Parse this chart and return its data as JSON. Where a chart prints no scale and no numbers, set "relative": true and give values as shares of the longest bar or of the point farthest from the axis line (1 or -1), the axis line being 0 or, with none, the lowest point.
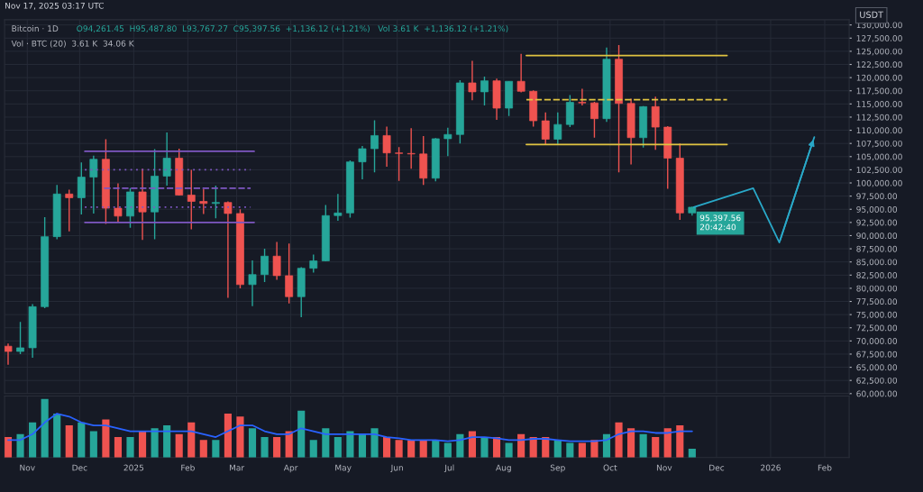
{
  "chart_data": [
    {
      "type": "candlestick",
      "title": "Bitcoin · 1D",
      "ylabel": "USDT",
      "annotations": [
        "Nov 17, 2025 03:17 UTC",
        "O94,261.45  H95,487.80  L93,767.27  C95,397.56  +1,136.12 (+1.21%)   Vol 3.61 K  +1,136.12 (+1.21%)",
        "Vol · BTC (20)  3.61 K  34.06 K",
        {
          "text": "95,397.56\n20:42:40",
          "x": "2025-11-17",
          "y": 95397.56
        }
      ],
      "x": [
        "2024-10-21",
        "2024-10-28",
        "2024-11-04",
        "2024-11-11",
        "2024-11-18",
        "2024-11-25",
        "2024-12-02",
        "2024-12-09",
        "2024-12-16",
        "2024-12-23",
        "2024-12-30",
        "2025-01-06",
        "2025-01-13",
        "2025-01-20",
        "2025-01-27",
        "2025-02-03",
        "2025-02-10",
        "2025-02-17",
        "2025-02-24",
        "2025-03-03",
        "2025-03-10",
        "2025-03-17",
        "2025-03-24",
        "2025-03-31",
        "2025-04-07",
        "2025-04-14",
        "2025-04-21",
        "2025-04-28",
        "2025-05-05",
        "2025-05-12",
        "2025-05-19",
        "2025-05-26",
        "2025-06-02",
        "2025-06-09",
        "2025-06-16",
        "2025-06-23",
        "2025-06-30",
        "2025-07-07",
        "2025-07-14",
        "2025-07-21",
        "2025-07-28",
        "2025-08-04",
        "2025-08-11",
        "2025-08-18",
        "2025-08-25",
        "2025-09-01",
        "2025-09-08",
        "2025-09-15",
        "2025-09-22",
        "2025-09-29",
        "2025-10-06",
        "2025-10-13",
        "2025-10-20",
        "2025-10-27",
        "2025-11-03",
        "2025-11-10",
        "2025-11-17"
      ],
      "ohlc": [
        [
          69000,
          69500,
          65500,
          68000
        ],
        [
          68000,
          73600,
          67500,
          68700
        ],
        [
          68700,
          77000,
          66800,
          76500
        ],
        [
          76500,
          93500,
          76200,
          89800
        ],
        [
          89800,
          99600,
          89300,
          97900
        ],
        [
          97900,
          98700,
          90800,
          97200
        ],
        [
          97200,
          103900,
          94000,
          101100
        ],
        [
          101100,
          105200,
          94200,
          104500
        ],
        [
          104500,
          108300,
          92200,
          95200
        ],
        [
          95200,
          99900,
          92500,
          93700
        ],
        [
          93700,
          99000,
          91500,
          98300
        ],
        [
          98300,
          102700,
          89200,
          94500
        ],
        [
          94500,
          106400,
          89300,
          101300
        ],
        [
          101300,
          109600,
          99500,
          104700
        ],
        [
          104700,
          106500,
          97600,
          97700
        ],
        [
          97700,
          102500,
          91200,
          96500
        ],
        [
          96500,
          98800,
          94100,
          96100
        ],
        [
          96100,
          99500,
          93300,
          96300
        ],
        [
          96300,
          96500,
          78200,
          94200
        ],
        [
          94200,
          95000,
          80000,
          80700
        ],
        [
          80700,
          85300,
          76600,
          82600
        ],
        [
          82600,
          87500,
          81200,
          86100
        ],
        [
          86100,
          88800,
          81600,
          82400
        ],
        [
          82400,
          88500,
          77100,
          78400
        ],
        [
          78400,
          84000,
          74500,
          83800
        ],
        [
          83800,
          86400,
          83000,
          85200
        ],
        [
          85200,
          95800,
          85100,
          93800
        ],
        [
          93800,
          97900,
          92800,
          94300
        ],
        [
          94300,
          104300,
          93400,
          104000
        ],
        [
          104000,
          107000,
          100700,
          106500
        ],
        [
          106500,
          111900,
          102000,
          109000
        ],
        [
          109000,
          110700,
          103100,
          105700
        ],
        [
          105700,
          106800,
          100400,
          105600
        ],
        [
          105600,
          110400,
          102700,
          105500
        ],
        [
          105500,
          108900,
          99600,
          100900
        ],
        [
          100900,
          108500,
          100300,
          108400
        ],
        [
          108400,
          110500,
          105100,
          109200
        ],
        [
          109200,
          119500,
          107500,
          119000
        ],
        [
          119000,
          123200,
          115700,
          117300
        ],
        [
          117300,
          120200,
          114700,
          119400
        ],
        [
          119400,
          119800,
          112000,
          114200
        ],
        [
          114200,
          119300,
          112700,
          119300
        ],
        [
          119300,
          124500,
          117200,
          117400
        ],
        [
          117400,
          117600,
          110700,
          111800
        ],
        [
          111800,
          113400,
          107300,
          108300
        ],
        [
          108300,
          113400,
          107300,
          111100
        ],
        [
          111100,
          116700,
          110600,
          115300
        ],
        [
          115300,
          117900,
          114700,
          115200
        ],
        [
          115200,
          115400,
          108600,
          112200
        ],
        [
          112200,
          125700,
          111600,
          123500
        ],
        [
          123500,
          126200,
          102000,
          115100
        ],
        [
          115100,
          116000,
          103500,
          108600
        ],
        [
          108600,
          114600,
          106700,
          114500
        ],
        [
          114500,
          116400,
          106300,
          110600
        ],
        [
          110600,
          110800,
          98900,
          104700
        ],
        [
          104700,
          107500,
          93000,
          94300
        ],
        [
          94300,
          95500,
          93800,
          95400
        ]
      ],
      "colors": [
        "#ef5350",
        "#26a69a",
        "#26a69a",
        "#26a69a",
        "#26a69a",
        "#ef5350",
        "#26a69a",
        "#26a69a",
        "#ef5350",
        "#ef5350",
        "#26a69a",
        "#ef5350",
        "#26a69a",
        "#26a69a",
        "#ef5350",
        "#ef5350",
        "#ef5350",
        "#26a69a",
        "#ef5350",
        "#ef5350",
        "#26a69a",
        "#26a69a",
        "#ef5350",
        "#ef5350",
        "#26a69a",
        "#26a69a",
        "#26a69a",
        "#26a69a",
        "#26a69a",
        "#26a69a",
        "#26a69a",
        "#ef5350",
        "#ef5350",
        "#ef5350",
        "#ef5350",
        "#26a69a",
        "#26a69a",
        "#26a69a",
        "#ef5350",
        "#26a69a",
        "#ef5350",
        "#26a69a",
        "#ef5350",
        "#ef5350",
        "#ef5350",
        "#26a69a",
        "#26a69a",
        "#ef5350",
        "#ef5350",
        "#26a69a",
        "#ef5350",
        "#ef5350",
        "#26a69a",
        "#ef5350",
        "#ef5350",
        "#ef5350",
        "#26a69a"
      ],
      "series": [
        {
          "type": "line",
          "color": "#7e57c2",
          "line_style": "solid",
          "x": [
            "2024-12-04",
            "2025-03-11"
          ],
          "values": [
            106000,
            106000
          ]
        },
        {
          "type": "line",
          "color": "#7e57c2",
          "line_style": "dotted",
          "x": [
            "2024-12-04",
            "2025-03-09"
          ],
          "values": [
            102500,
            102500
          ]
        },
        {
          "type": "line",
          "color": "#7e57c2",
          "line_style": "dashed",
          "x": [
            "2024-12-15",
            "2025-03-09"
          ],
          "values": [
            99000,
            99000
          ]
        },
        {
          "type": "line",
          "color": "#7e57c2",
          "line_style": "dotted",
          "x": [
            "2024-12-04",
            "2025-03-09"
          ],
          "values": [
            95400,
            95400
          ]
        },
        {
          "type": "line",
          "color": "#7e57c2",
          "line_style": "solid",
          "x": [
            "2024-12-04",
            "2025-03-11"
          ],
          "values": [
            92500,
            92500
          ]
        },
        {
          "type": "line",
          "color": "#e0c341",
          "line_style": "solid",
          "x": [
            "2025-08-14",
            "2025-12-07"
          ],
          "values": [
            124200,
            124200
          ]
        },
        {
          "type": "line",
          "color": "#e0c341",
          "line_style": "dashed",
          "x": [
            "2025-08-14",
            "2025-12-07"
          ],
          "values": [
            115800,
            115800
          ]
        },
        {
          "type": "line",
          "color": "#e0c341",
          "line_style": "solid",
          "x": [
            "2025-08-14",
            "2025-12-07"
          ],
          "values": [
            107300,
            107300
          ]
        },
        {
          "type": "line",
          "color": "#29a8c8",
          "line_style": "solid",
          "x": [
            "2025-11-18",
            "2025-12-22",
            "2026-01-06",
            "2026-01-26"
          ],
          "values": [
            95400,
            99000,
            88700,
            108700
          ]
        }
      ],
      "xlim": [
        "2024-10-19",
        "2026-02-15"
      ],
      "xticks": [
        {
          "value": "2024-11-01",
          "label": null
        },
        {
          "value": "2024-12-01",
          "label": null
        },
        {
          "value": "2025-01-01",
          "label": null
        },
        {
          "value": "2025-02-01",
          "label": null
        },
        {
          "value": "2025-03-01",
          "label": null
        },
        {
          "value": "2025-04-01",
          "label": null
        },
        {
          "value": "2025-05-01",
          "label": null
        },
        {
          "value": "2025-06-01",
          "label": null
        },
        {
          "value": "2025-07-01",
          "label": null
        },
        {
          "value": "2025-08-01",
          "label": null
        },
        {
          "value": "2025-09-01",
          "label": null
        },
        {
          "value": "2025-10-01",
          "label": null
        },
        {
          "value": "2025-11-01",
          "label": null
        },
        {
          "value": "2025-12-01",
          "label": null
        },
        {
          "value": "2026-01-01",
          "label": null
        },
        {
          "value": "2026-02-01",
          "label": null
        }
      ],
      "ylim": [
        60000,
        131000
      ],
      "yticks": [
        {
          "value": 60000,
          "label": "60,000.00"
        },
        {
          "value": 62500,
          "label": "62,500.00"
        },
        {
          "value": 65000,
          "label": "65,000.00"
        },
        {
          "value": 67500,
          "label": "67,500.00"
        },
        {
          "value": 70000,
          "label": "70,000.00"
        },
        {
          "value": 72500,
          "label": "72,500.00"
        },
        {
          "value": 75000,
          "label": "75,000.00"
        },
        {
          "value": 77500,
          "label": "77,500.00"
        },
        {
          "value": 80000,
          "label": "80,000.00"
        },
        {
          "value": 82500,
          "label": "82,500.00"
        },
        {
          "value": 85000,
          "label": "85,000.00"
        },
        {
          "value": 87500,
          "label": "87,500.00"
        },
        {
          "value": 90000,
          "label": "90,000.00"
        },
        {
          "value": 92500,
          "label": "92,500.00"
        },
        {
          "value": 95000,
          "label": "95,000.00"
        },
        {
          "value": 97500,
          "label": "97,500.00"
        },
        {
          "value": 100000,
          "label": "100,000.00"
        },
        {
          "value": 102500,
          "label": "102,500.00"
        },
        {
          "value": 105000,
          "label": "105,000.00"
        },
        {
          "value": 107500,
          "label": "107,500.00"
        },
        {
          "value": 110000,
          "label": "110,000.00"
        },
        {
          "value": 112500,
          "label": "112,500.00"
        },
        {
          "value": 115000,
          "label": "115,000.00"
        },
        {
          "value": 117500,
          "label": "117,500.00"
        },
        {
          "value": 120000,
          "label": "120,000.00"
        },
        {
          "value": 122500,
          "label": "122,500.00"
        },
        {
          "value": 125000,
          "label": "125,000.00"
        },
        {
          "value": 127500,
          "label": "127,500.00"
        },
        {
          "value": 130000,
          "label": "130,000.00"
        }
      ],
      "tick_labels": "y",
      "grid": true
    },
    {
      "type": "bar",
      "relative": true,
      "x": [
        "2024-10-21",
        "2024-10-28",
        "2024-11-04",
        "2024-11-11",
        "2024-11-18",
        "2024-11-25",
        "2024-12-02",
        "2024-12-09",
        "2024-12-16",
        "2024-12-23",
        "2024-12-30",
        "2025-01-06",
        "2025-01-13",
        "2025-01-20",
        "2025-01-27",
        "2025-02-03",
        "2025-02-10",
        "2025-02-17",
        "2025-02-24",
        "2025-03-03",
        "2025-03-10",
        "2025-03-17",
        "2025-03-24",
        "2025-03-31",
        "2025-04-07",
        "2025-04-14",
        "2025-04-21",
        "2025-04-28",
        "2025-05-05",
        "2025-05-12",
        "2025-05-19",
        "2025-05-26",
        "2025-06-02",
        "2025-06-09",
        "2025-06-16",
        "2025-06-23",
        "2025-06-30",
        "2025-07-07",
        "2025-07-14",
        "2025-07-21",
        "2025-07-28",
        "2025-08-04",
        "2025-08-11",
        "2025-08-18",
        "2025-08-25",
        "2025-09-01",
        "2025-09-08",
        "2025-09-15",
        "2025-09-22",
        "2025-09-29",
        "2025-10-06",
        "2025-10-13",
        "2025-10-20",
        "2025-10-27",
        "2025-11-03",
        "2025-11-10",
        "2025-11-17"
      ],
      "series": [
        {
          "type": "bar",
          "colors": [
            "#ef5350",
            "#26a69a",
            "#26a69a",
            "#26a69a",
            "#26a69a",
            "#ef5350",
            "#26a69a",
            "#26a69a",
            "#ef5350",
            "#ef5350",
            "#26a69a",
            "#ef5350",
            "#26a69a",
            "#26a69a",
            "#ef5350",
            "#ef5350",
            "#ef5350",
            "#26a69a",
            "#ef5350",
            "#ef5350",
            "#26a69a",
            "#26a69a",
            "#ef5350",
            "#ef5350",
            "#26a69a",
            "#26a69a",
            "#26a69a",
            "#26a69a",
            "#26a69a",
            "#26a69a",
            "#26a69a",
            "#ef5350",
            "#ef5350",
            "#ef5350",
            "#ef5350",
            "#26a69a",
            "#26a69a",
            "#26a69a",
            "#ef5350",
            "#26a69a",
            "#ef5350",
            "#26a69a",
            "#ef5350",
            "#ef5350",
            "#ef5350",
            "#26a69a",
            "#26a69a",
            "#ef5350",
            "#ef5350",
            "#26a69a",
            "#ef5350",
            "#ef5350",
            "#26a69a",
            "#ef5350",
            "#ef5350",
            "#ef5350",
            "#26a69a"
          ],
          "values": [
            0.35,
            0.4,
            0.6,
            1.0,
            0.75,
            0.55,
            0.6,
            0.45,
            0.65,
            0.35,
            0.35,
            0.45,
            0.5,
            0.55,
            0.4,
            0.6,
            0.3,
            0.3,
            0.75,
            0.7,
            0.5,
            0.35,
            0.35,
            0.45,
            0.8,
            0.3,
            0.5,
            0.35,
            0.45,
            0.4,
            0.5,
            0.35,
            0.3,
            0.3,
            0.3,
            0.3,
            0.25,
            0.4,
            0.45,
            0.35,
            0.35,
            0.25,
            0.4,
            0.35,
            0.35,
            0.3,
            0.25,
            0.25,
            0.3,
            0.4,
            0.6,
            0.5,
            0.4,
            0.35,
            0.5,
            0.55,
            0.15
          ]
        },
        {
          "type": "line",
          "color": "#2962ff",
          "line_style": "solid",
          "values": [
            0.3,
            0.3,
            0.4,
            0.6,
            0.75,
            0.7,
            0.6,
            0.55,
            0.55,
            0.5,
            0.45,
            0.45,
            0.45,
            0.45,
            0.45,
            0.45,
            0.4,
            0.35,
            0.45,
            0.55,
            0.55,
            0.45,
            0.4,
            0.4,
            0.5,
            0.45,
            0.4,
            0.4,
            0.4,
            0.4,
            0.4,
            0.35,
            0.33,
            0.3,
            0.3,
            0.3,
            0.28,
            0.3,
            0.35,
            0.35,
            0.33,
            0.3,
            0.3,
            0.32,
            0.32,
            0.3,
            0.28,
            0.28,
            0.28,
            0.3,
            0.4,
            0.45,
            0.45,
            0.42,
            0.42,
            0.45,
            0.45
          ]
        }
      ],
      "xlim": [
        "2024-10-19",
        "2026-02-15"
      ],
      "xticks": [
        {
          "value": "2024-11-01",
          "label": "Nov"
        },
        {
          "value": "2024-12-01",
          "label": "Dec"
        },
        {
          "value": "2025-01-01",
          "label": "2025"
        },
        {
          "value": "2025-02-01",
          "label": "Feb"
        },
        {
          "value": "2025-03-01",
          "label": "Mar"
        },
        {
          "value": "2025-04-01",
          "label": "Apr"
        },
        {
          "value": "2025-05-01",
          "label": "May"
        },
        {
          "value": "2025-06-01",
          "label": "Jun"
        },
        {
          "value": "2025-07-01",
          "label": "Jul"
        },
        {
          "value": "2025-08-01",
          "label": "Aug"
        },
        {
          "value": "2025-09-01",
          "label": "Sep"
        },
        {
          "value": "2025-10-01",
          "label": "Oct"
        },
        {
          "value": "2025-11-01",
          "label": "Nov"
        },
        {
          "value": "2025-12-01",
          "label": "Dec"
        },
        {
          "value": "2026-01-01",
          "label": "2026"
        },
        {
          "value": "2026-02-01",
          "label": "Feb"
        }
      ],
      "tick_labels": "x",
      "grid": "x"
    }
  ]
}
